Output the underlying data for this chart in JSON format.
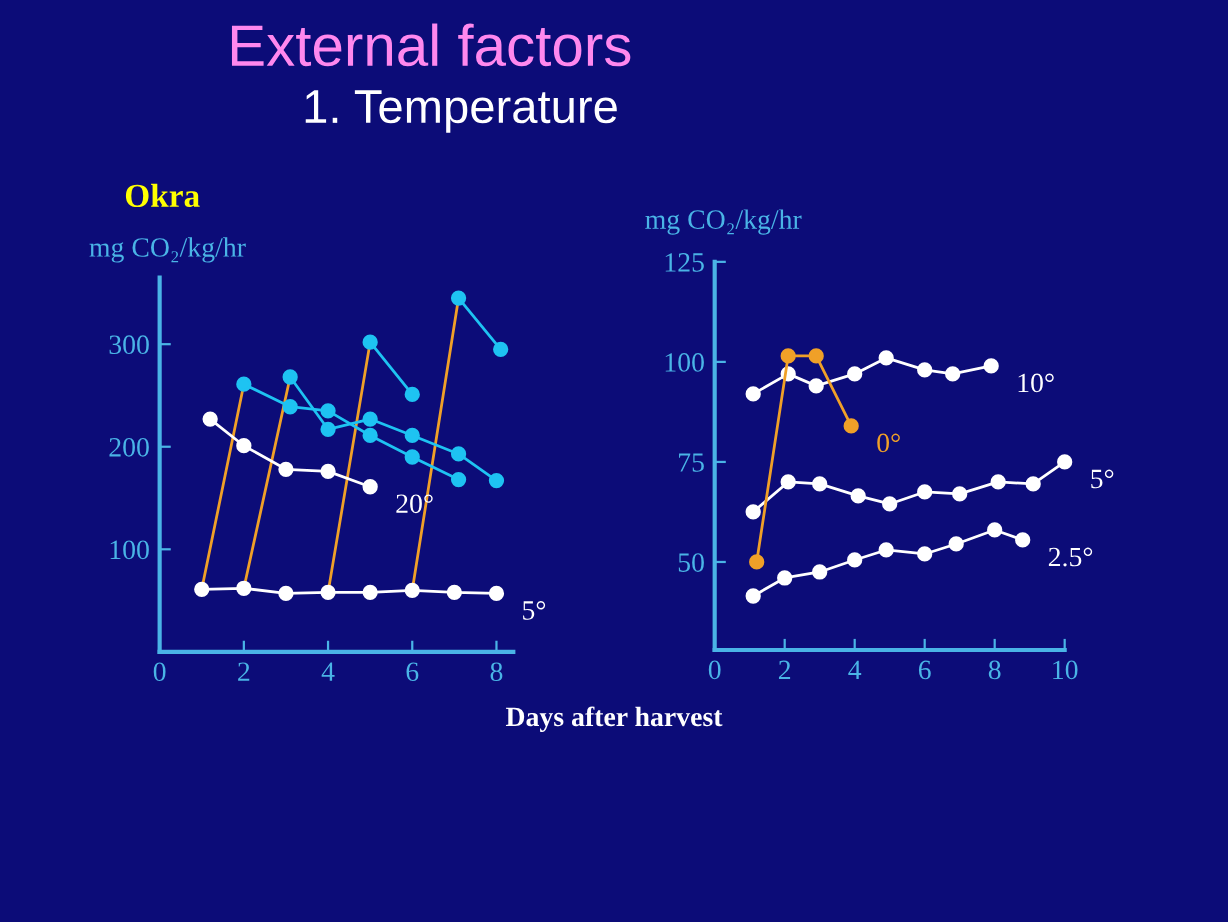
{
  "chart_data": [
    {
      "type": "line",
      "title": "External factors",
      "subtitle": "1. Temperature",
      "xlabel": "Days after harvest",
      "ylabel": "mg CO₂/kg/hr",
      "annotations": [
        "Okra"
      ],
      "xlim": [
        0,
        8.4
      ],
      "ylim": [
        0,
        365
      ],
      "xticks": [
        0,
        2,
        4,
        6,
        8
      ],
      "yticks": [
        100,
        200,
        300
      ],
      "marker": "circle",
      "grid": false,
      "legend": false,
      "series": [
        {
          "name": "5°",
          "color": "#ffffff",
          "x": [
            1,
            2,
            3,
            4,
            5,
            6,
            7,
            8
          ],
          "values": [
            61,
            62,
            57,
            58,
            58,
            60,
            58,
            57
          ]
        },
        {
          "name": "20°",
          "color": "#ffffff",
          "x": [
            1.2,
            2,
            3,
            4,
            5
          ],
          "values": [
            227,
            201,
            178,
            176,
            161
          ]
        },
        {
          "color": "#1ec3f2",
          "x": [
            2,
            3.1,
            4,
            5,
            6,
            7.1
          ],
          "values": [
            261,
            239,
            235,
            211,
            190,
            168
          ]
        },
        {
          "color": "#1ec3f2",
          "x": [
            3.1,
            4,
            5,
            6,
            7.1,
            8
          ],
          "values": [
            268,
            217,
            227,
            211,
            193,
            167
          ]
        },
        {
          "color": "#1ec3f2",
          "x": [
            5,
            6
          ],
          "values": [
            302,
            251
          ]
        },
        {
          "color": "#1ec3f2",
          "x": [
            7.1,
            8.1
          ],
          "values": [
            345,
            295
          ]
        },
        {
          "color": "#f0a028",
          "x": [
            1,
            2
          ],
          "values": [
            61,
            261
          ],
          "marker": "none"
        },
        {
          "color": "#f0a028",
          "x": [
            2,
            3.1
          ],
          "values": [
            62,
            268
          ],
          "marker": "none"
        },
        {
          "color": "#f0a028",
          "x": [
            4,
            5
          ],
          "values": [
            58,
            302
          ],
          "marker": "none"
        },
        {
          "color": "#f0a028",
          "x": [
            6,
            7.1
          ],
          "values": [
            60,
            345
          ],
          "marker": "none"
        }
      ]
    },
    {
      "type": "line",
      "ylabel": "mg CO₂/kg/hr",
      "xlim": [
        0,
        10
      ],
      "ylim": [
        28,
        125
      ],
      "xticks": [
        0,
        2,
        4,
        6,
        8,
        10
      ],
      "yticks": [
        50,
        75,
        100,
        125
      ],
      "marker": "circle",
      "grid": false,
      "legend": false,
      "series": [
        {
          "name": "10°",
          "color": "#ffffff",
          "x": [
            1.1,
            2.1,
            2.9,
            4,
            4.9,
            6,
            6.8,
            7.9
          ],
          "values": [
            92,
            97,
            94,
            97,
            101,
            98,
            97,
            99
          ]
        },
        {
          "name": "5°",
          "color": "#ffffff",
          "x": [
            1.1,
            2.1,
            3,
            4.1,
            5,
            6,
            7,
            8.1,
            9.1,
            10
          ],
          "values": [
            62.5,
            70,
            69.5,
            66.5,
            64.5,
            67.5,
            67,
            70,
            69.5,
            75
          ]
        },
        {
          "name": "2.5°",
          "color": "#ffffff",
          "x": [
            1.1,
            2,
            3,
            4,
            4.9,
            6,
            6.9,
            8,
            8.8
          ],
          "values": [
            41.5,
            46,
            47.5,
            50.5,
            53,
            52,
            54.5,
            58,
            55.5
          ]
        },
        {
          "name": "0°",
          "color": "#f0a028",
          "x": [
            1.2,
            2.1,
            2.9,
            3.9
          ],
          "values": [
            50,
            101.5,
            101.5,
            84
          ]
        }
      ]
    }
  ]
}
